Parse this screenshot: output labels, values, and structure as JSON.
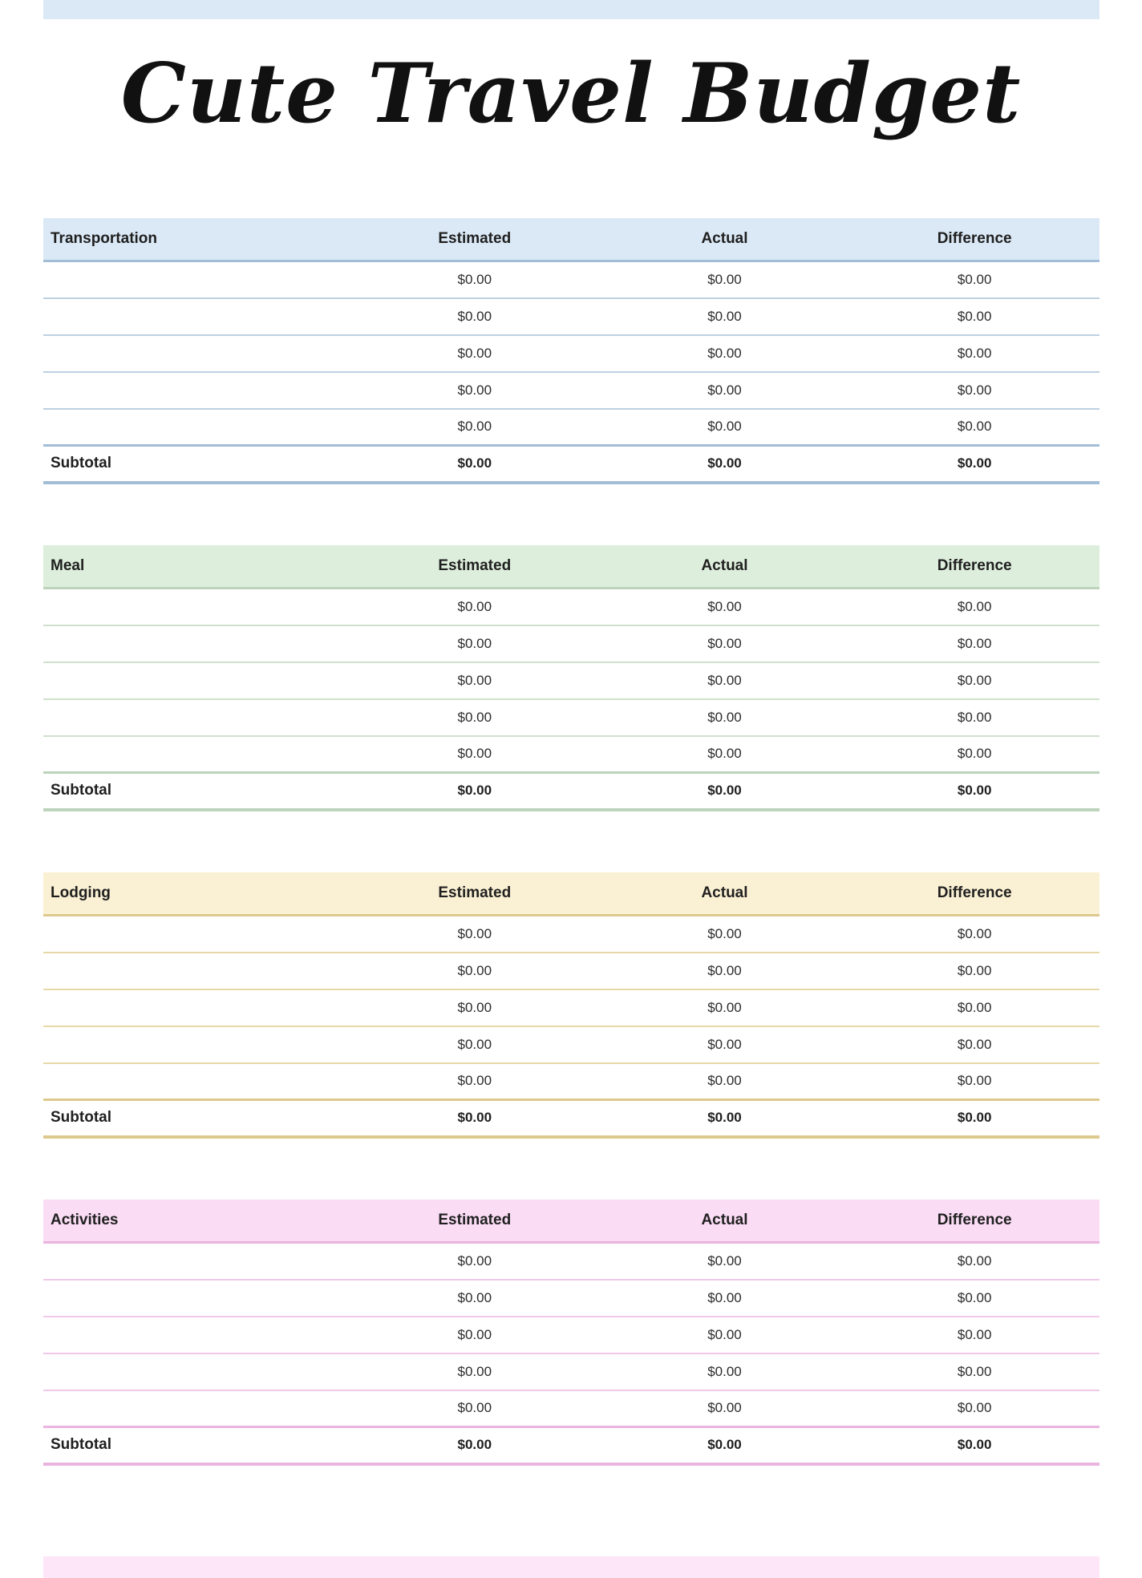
{
  "page": {
    "title": "Cute Travel Budget",
    "background_color": "#ffffff",
    "text_color": "#1f1f1f",
    "top_bar_color": "#dbe9f6",
    "bottom_bar_color": "#fce6f7"
  },
  "table_columns": [
    "Estimated",
    "Actual",
    "Difference"
  ],
  "subtotal_label": "Subtotal",
  "sections": [
    {
      "name": "Transportation",
      "colors": {
        "header_bg": "#dbe9f6",
        "line_strong": "#a2bdd6",
        "line_light": "#bdd0e2"
      },
      "rows": [
        {
          "estimated": "$0.00",
          "actual": "$0.00",
          "difference": "$0.00"
        },
        {
          "estimated": "$0.00",
          "actual": "$0.00",
          "difference": "$0.00"
        },
        {
          "estimated": "$0.00",
          "actual": "$0.00",
          "difference": "$0.00"
        },
        {
          "estimated": "$0.00",
          "actual": "$0.00",
          "difference": "$0.00"
        },
        {
          "estimated": "$0.00",
          "actual": "$0.00",
          "difference": "$0.00"
        }
      ],
      "subtotal": {
        "estimated": "$0.00",
        "actual": "$0.00",
        "difference": "$0.00"
      }
    },
    {
      "name": "Meal",
      "colors": {
        "header_bg": "#ddeedc",
        "line_strong": "#bed3bb",
        "line_light": "#cfe1cc"
      },
      "rows": [
        {
          "estimated": "$0.00",
          "actual": "$0.00",
          "difference": "$0.00"
        },
        {
          "estimated": "$0.00",
          "actual": "$0.00",
          "difference": "$0.00"
        },
        {
          "estimated": "$0.00",
          "actual": "$0.00",
          "difference": "$0.00"
        },
        {
          "estimated": "$0.00",
          "actual": "$0.00",
          "difference": "$0.00"
        },
        {
          "estimated": "$0.00",
          "actual": "$0.00",
          "difference": "$0.00"
        }
      ],
      "subtotal": {
        "estimated": "$0.00",
        "actual": "$0.00",
        "difference": "$0.00"
      }
    },
    {
      "name": "Lodging",
      "colors": {
        "header_bg": "#faf0d3",
        "line_strong": "#ddc98e",
        "line_light": "#e8d8a8"
      },
      "rows": [
        {
          "estimated": "$0.00",
          "actual": "$0.00",
          "difference": "$0.00"
        },
        {
          "estimated": "$0.00",
          "actual": "$0.00",
          "difference": "$0.00"
        },
        {
          "estimated": "$0.00",
          "actual": "$0.00",
          "difference": "$0.00"
        },
        {
          "estimated": "$0.00",
          "actual": "$0.00",
          "difference": "$0.00"
        },
        {
          "estimated": "$0.00",
          "actual": "$0.00",
          "difference": "$0.00"
        }
      ],
      "subtotal": {
        "estimated": "$0.00",
        "actual": "$0.00",
        "difference": "$0.00"
      }
    },
    {
      "name": "Activities",
      "colors": {
        "header_bg": "#fadcf4",
        "line_strong": "#e9b4de",
        "line_light": "#f0c8e9"
      },
      "rows": [
        {
          "estimated": "$0.00",
          "actual": "$0.00",
          "difference": "$0.00"
        },
        {
          "estimated": "$0.00",
          "actual": "$0.00",
          "difference": "$0.00"
        },
        {
          "estimated": "$0.00",
          "actual": "$0.00",
          "difference": "$0.00"
        },
        {
          "estimated": "$0.00",
          "actual": "$0.00",
          "difference": "$0.00"
        },
        {
          "estimated": "$0.00",
          "actual": "$0.00",
          "difference": "$0.00"
        }
      ],
      "subtotal": {
        "estimated": "$0.00",
        "actual": "$0.00",
        "difference": "$0.00"
      }
    }
  ]
}
